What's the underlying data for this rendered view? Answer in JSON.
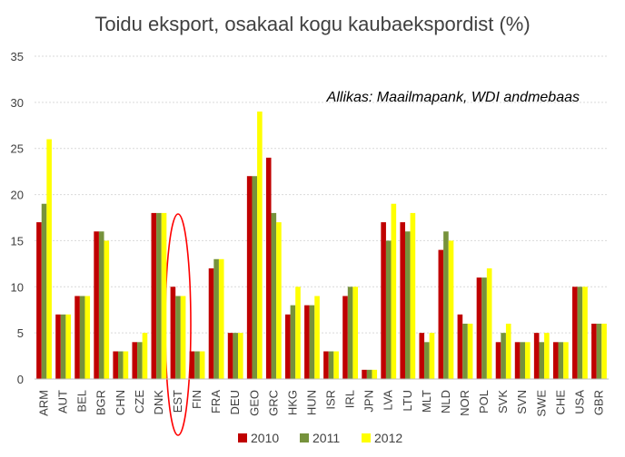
{
  "chart_data": {
    "type": "bar",
    "title": "Toidu eksport, osakaal kogu kaubaekspordist (%)",
    "annotation": "Allikas: Maailmapank, WDI andmebaas",
    "highlighted_category": "EST",
    "xlabel": "",
    "ylabel": "",
    "ylim": [
      0,
      35
    ],
    "yticks": [
      0,
      5,
      10,
      15,
      20,
      25,
      30,
      35
    ],
    "grid": true,
    "legend_position": "bottom",
    "categories": [
      "ARM",
      "AUT",
      "BEL",
      "BGR",
      "CHN",
      "CZE",
      "DNK",
      "EST",
      "FIN",
      "FRA",
      "DEU",
      "GEO",
      "GRC",
      "HKG",
      "HUN",
      "ISR",
      "IRL",
      "JPN",
      "LVA",
      "LTU",
      "MLT",
      "NLD",
      "NOR",
      "POL",
      "SVK",
      "SVN",
      "SWE",
      "CHE",
      "USA",
      "GBR"
    ],
    "series": [
      {
        "name": "2010",
        "color": "#c00000",
        "values": [
          17,
          7,
          9,
          16,
          3,
          4,
          18,
          10,
          3,
          12,
          5,
          22,
          24,
          7,
          8,
          3,
          9,
          1,
          17,
          17,
          5,
          14,
          7,
          11,
          4,
          4,
          5,
          4,
          10,
          6
        ]
      },
      {
        "name": "2011",
        "color": "#76923c",
        "values": [
          19,
          7,
          9,
          16,
          3,
          4,
          18,
          9,
          3,
          13,
          5,
          22,
          18,
          8,
          8,
          3,
          10,
          1,
          15,
          16,
          4,
          16,
          6,
          11,
          5,
          4,
          4,
          4,
          10,
          6
        ]
      },
      {
        "name": "2012",
        "color": "#ffff00",
        "values": [
          26,
          7,
          9,
          15,
          3,
          5,
          18,
          9,
          3,
          13,
          5,
          29,
          17,
          10,
          9,
          3,
          10,
          1,
          19,
          18,
          5,
          15,
          6,
          12,
          6,
          4,
          5,
          4,
          10,
          6
        ]
      }
    ]
  }
}
